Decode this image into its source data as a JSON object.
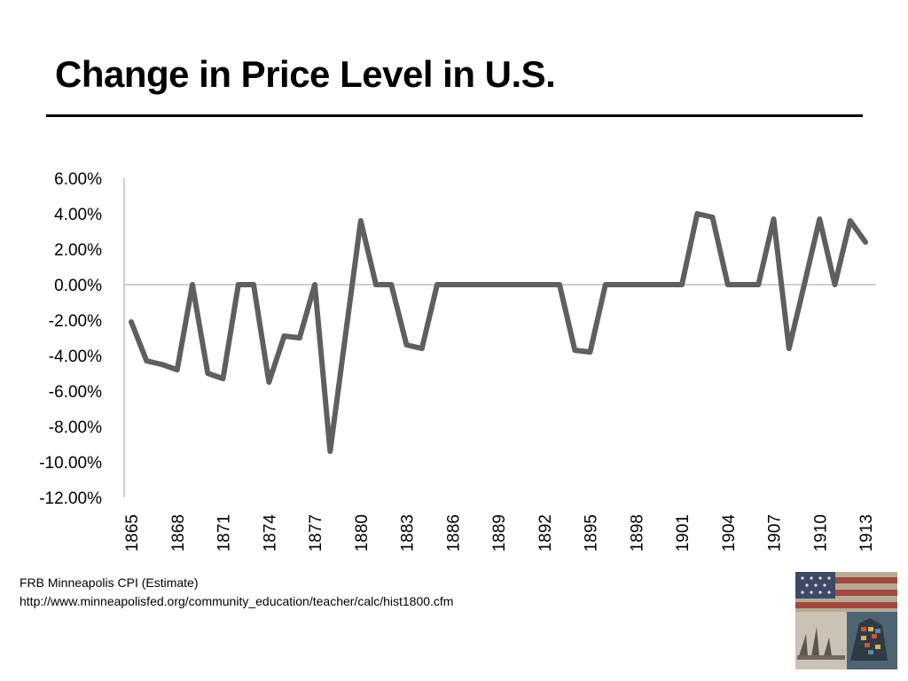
{
  "slide": {
    "title": "Change in Price Level in U.S."
  },
  "source": {
    "line1": "FRB Minneapolis CPI (Estimate)",
    "line2": "http://www.minneapolisfed.org/community_education/teacher/calc/hist1800.cfm"
  },
  "colors": {
    "series_line": "#5f5f5f",
    "axis": "#bfbfbf"
  },
  "chart_data": {
    "type": "line",
    "title": "",
    "xlabel": "",
    "ylabel": "",
    "y_format": "percent_2dp",
    "ylim": [
      -0.12,
      0.06
    ],
    "y_ticks": [
      0.06,
      0.04,
      0.02,
      0.0,
      -0.02,
      -0.04,
      -0.06,
      -0.08,
      -0.1,
      -0.12
    ],
    "y_tick_labels": [
      "6.00%",
      "4.00%",
      "2.00%",
      "0.00%",
      "-2.00%",
      "-4.00%",
      "-6.00%",
      "-8.00%",
      "-10.00%",
      "-12.00%"
    ],
    "x_tick_labels": [
      "1865",
      "1868",
      "1871",
      "1874",
      "1877",
      "1880",
      "1883",
      "1886",
      "1889",
      "1892",
      "1895",
      "1898",
      "1901",
      "1904",
      "1907",
      "1910",
      "1913"
    ],
    "grid": false,
    "legend": "none",
    "series": [
      {
        "x": [
          1865,
          1866,
          1867,
          1868,
          1869,
          1870,
          1871,
          1872,
          1873,
          1874,
          1875,
          1876,
          1877,
          1878,
          1879,
          1880,
          1881,
          1882,
          1883,
          1884,
          1885,
          1886,
          1887,
          1888,
          1889,
          1890,
          1891,
          1892,
          1893,
          1894,
          1895,
          1896,
          1897,
          1898,
          1899,
          1900,
          1901,
          1902,
          1903,
          1904,
          1905,
          1906,
          1907,
          1908,
          1909,
          1910,
          1911,
          1912,
          1913
        ],
        "values": [
          -0.021,
          -0.043,
          -0.045,
          -0.048,
          0.0,
          -0.05,
          -0.053,
          0.0,
          0.0,
          -0.055,
          -0.029,
          -0.03,
          0.0,
          -0.094,
          -0.029,
          0.036,
          0.0,
          0.0,
          -0.034,
          -0.036,
          0.0,
          0.0,
          0.0,
          0.0,
          0.0,
          0.0,
          0.0,
          0.0,
          0.0,
          -0.037,
          -0.038,
          0.0,
          0.0,
          0.0,
          0.0,
          0.0,
          0.0,
          0.04,
          0.038,
          0.0,
          0.0,
          0.0,
          0.037,
          -0.036,
          0.0,
          0.037,
          0.0,
          0.036,
          0.024
        ]
      }
    ]
  }
}
